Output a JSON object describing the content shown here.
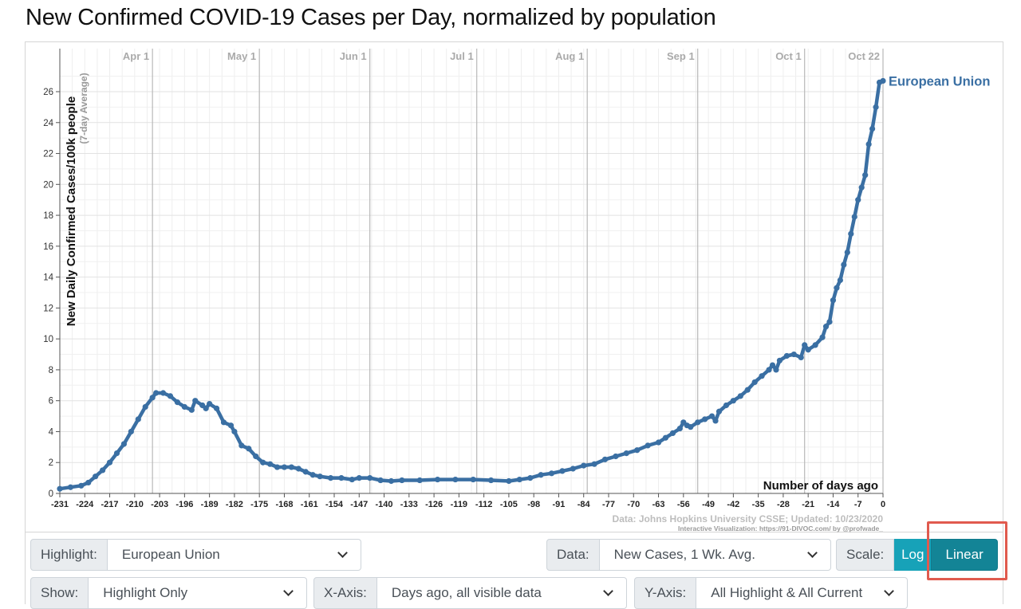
{
  "page_title": "New Confirmed COVID-19 Cases per Day, normalized by population",
  "chart_data": {
    "type": "line",
    "title": "New Confirmed COVID-19 Cases per Day, normalized by population",
    "ylabel": "New Daily Confirmed Cases/100k people",
    "ylabel_sub": "(7-day Average)",
    "xlabel": "Number of days ago",
    "xlim": [
      -231,
      0
    ],
    "ylim": [
      0,
      28
    ],
    "y_ticks": [
      0,
      2,
      4,
      6,
      8,
      10,
      12,
      14,
      16,
      18,
      20,
      22,
      24,
      26
    ],
    "x_ticks": [
      -231,
      -224,
      -217,
      -210,
      -203,
      -196,
      -189,
      -182,
      -175,
      -168,
      -161,
      -154,
      -147,
      -140,
      -133,
      -126,
      -119,
      -112,
      -105,
      -98,
      -91,
      -84,
      -77,
      -70,
      -63,
      -56,
      -49,
      -42,
      -35,
      -28,
      -21,
      -14,
      -7,
      0
    ],
    "date_markers": [
      {
        "label": "Apr 1",
        "x": -205
      },
      {
        "label": "May 1",
        "x": -175
      },
      {
        "label": "Jun 1",
        "x": -144
      },
      {
        "label": "Jul 1",
        "x": -114
      },
      {
        "label": "Aug 1",
        "x": -83
      },
      {
        "label": "Sep 1",
        "x": -52
      },
      {
        "label": "Oct 1",
        "x": -22
      },
      {
        "label": "Oct 22",
        "x": 0
      }
    ],
    "grid": true,
    "series": [
      {
        "name": "European Union",
        "color": "#3a6fa3",
        "points": [
          [
            -231,
            0.3
          ],
          [
            -228,
            0.4
          ],
          [
            -225,
            0.5
          ],
          [
            -223,
            0.7
          ],
          [
            -221,
            1.1
          ],
          [
            -219,
            1.5
          ],
          [
            -217,
            2.0
          ],
          [
            -215,
            2.6
          ],
          [
            -213,
            3.2
          ],
          [
            -211,
            4.0
          ],
          [
            -209,
            4.8
          ],
          [
            -207,
            5.6
          ],
          [
            -205,
            6.2
          ],
          [
            -204,
            6.5
          ],
          [
            -202,
            6.5
          ],
          [
            -200,
            6.3
          ],
          [
            -198,
            5.9
          ],
          [
            -196,
            5.6
          ],
          [
            -194,
            5.4
          ],
          [
            -193,
            6.0
          ],
          [
            -191,
            5.7
          ],
          [
            -190,
            5.5
          ],
          [
            -189,
            5.8
          ],
          [
            -187,
            5.5
          ],
          [
            -185,
            4.6
          ],
          [
            -183,
            4.4
          ],
          [
            -182,
            4.0
          ],
          [
            -180,
            3.1
          ],
          [
            -178,
            2.9
          ],
          [
            -176,
            2.4
          ],
          [
            -174,
            2.0
          ],
          [
            -172,
            1.9
          ],
          [
            -170,
            1.7
          ],
          [
            -168,
            1.7
          ],
          [
            -166,
            1.7
          ],
          [
            -164,
            1.6
          ],
          [
            -162,
            1.4
          ],
          [
            -160,
            1.2
          ],
          [
            -158,
            1.1
          ],
          [
            -155,
            1.0
          ],
          [
            -152,
            1.0
          ],
          [
            -149,
            0.9
          ],
          [
            -147,
            1.0
          ],
          [
            -144,
            1.0
          ],
          [
            -141,
            0.85
          ],
          [
            -138,
            0.8
          ],
          [
            -135,
            0.85
          ],
          [
            -130,
            0.85
          ],
          [
            -125,
            0.9
          ],
          [
            -120,
            0.9
          ],
          [
            -115,
            0.9
          ],
          [
            -110,
            0.85
          ],
          [
            -105,
            0.8
          ],
          [
            -102,
            0.9
          ],
          [
            -99,
            1.0
          ],
          [
            -96,
            1.2
          ],
          [
            -93,
            1.3
          ],
          [
            -90,
            1.45
          ],
          [
            -87,
            1.6
          ],
          [
            -84,
            1.8
          ],
          [
            -81,
            1.9
          ],
          [
            -78,
            2.2
          ],
          [
            -75,
            2.4
          ],
          [
            -72,
            2.6
          ],
          [
            -69,
            2.8
          ],
          [
            -66,
            3.1
          ],
          [
            -63,
            3.3
          ],
          [
            -61,
            3.6
          ],
          [
            -59,
            3.9
          ],
          [
            -57,
            4.2
          ],
          [
            -56,
            4.6
          ],
          [
            -55,
            4.4
          ],
          [
            -54,
            4.3
          ],
          [
            -52,
            4.6
          ],
          [
            -50,
            4.8
          ],
          [
            -48,
            5.0
          ],
          [
            -47,
            4.7
          ],
          [
            -46,
            5.3
          ],
          [
            -44,
            5.7
          ],
          [
            -42,
            6.0
          ],
          [
            -40,
            6.3
          ],
          [
            -38,
            6.7
          ],
          [
            -36,
            7.2
          ],
          [
            -34,
            7.6
          ],
          [
            -32,
            8.0
          ],
          [
            -31,
            8.3
          ],
          [
            -30,
            8.0
          ],
          [
            -29,
            8.6
          ],
          [
            -27,
            8.9
          ],
          [
            -25,
            9.0
          ],
          [
            -23,
            8.8
          ],
          [
            -22,
            9.6
          ],
          [
            -21,
            9.3
          ],
          [
            -19,
            9.6
          ],
          [
            -17,
            10.1
          ],
          [
            -16,
            10.8
          ],
          [
            -15,
            11.1
          ],
          [
            -14,
            12.5
          ],
          [
            -13,
            13.3
          ],
          [
            -12,
            13.8
          ],
          [
            -11,
            14.8
          ],
          [
            -10,
            15.6
          ],
          [
            -9,
            16.8
          ],
          [
            -8,
            17.9
          ],
          [
            -7,
            19.0
          ],
          [
            -6,
            19.8
          ],
          [
            -5,
            20.6
          ],
          [
            -4,
            22.6
          ],
          [
            -3,
            23.6
          ],
          [
            -2,
            25.0
          ],
          [
            -1,
            26.6
          ],
          [
            0,
            26.7
          ]
        ]
      }
    ],
    "source_text": "Data: Johns Hopkins University CSSE; Updated: 10/23/2020",
    "credit_text": "Interactive Visualization: https://91-DIVOC.com/ by @profwade_"
  },
  "controls": {
    "highlight_label": "Highlight:",
    "highlight_value": "European Union",
    "data_label": "Data:",
    "data_value": "New Cases, 1 Wk. Avg.",
    "scale_label": "Scale:",
    "scale_log": "Log",
    "scale_linear": "Linear",
    "show_label": "Show:",
    "show_value": "Highlight Only",
    "xaxis_label": "X-Axis:",
    "xaxis_value": "Days ago, all visible data",
    "yaxis_label": "Y-Axis:",
    "yaxis_value": "All Highlight & All Current"
  }
}
